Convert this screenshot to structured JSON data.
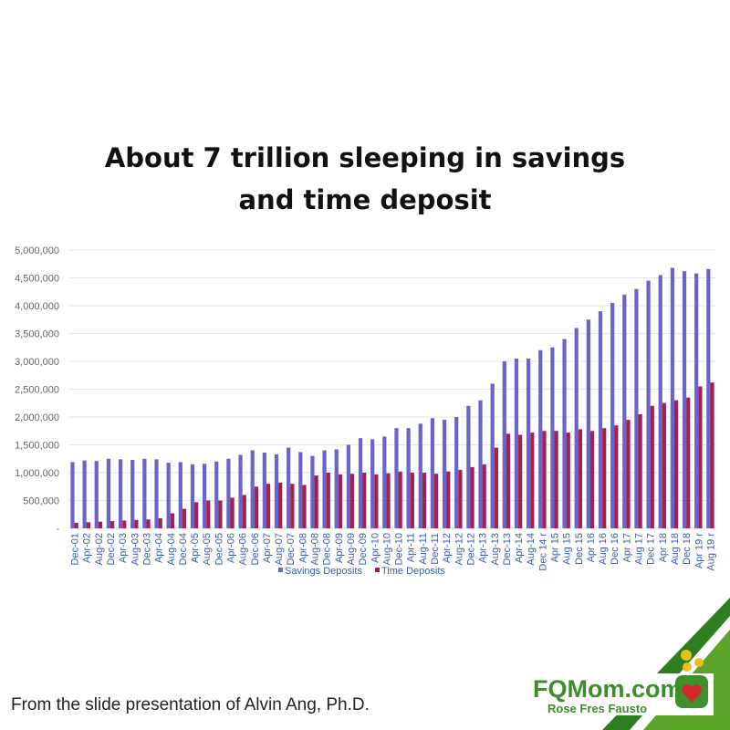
{
  "chart_data": {
    "type": "bar",
    "title": "About 7 trillion sleeping in savings and time deposit",
    "categories": [
      "Dec-01",
      "Apr-02",
      "Aug-02",
      "Dec-02",
      "Apr-03",
      "Aug-03",
      "Dec-03",
      "Apr-04",
      "Aug-04",
      "Dec-04",
      "Apr-05",
      "Aug-05",
      "Dec-05",
      "Apr-06",
      "Aug-06",
      "Dec-06",
      "Apr-07",
      "Aug-07",
      "Dec-07",
      "Apr-08",
      "Aug-08",
      "Dec-08",
      "Apr-09",
      "Aug-09",
      "Dec-09",
      "Apr-10",
      "Aug-10",
      "Dec-10",
      "Apr-11",
      "Aug-11",
      "Dec-11",
      "Apr-12",
      "Aug-12",
      "Dec-12",
      "Apr-13",
      "Aug-13",
      "Dec-13",
      "Apr-14",
      "Aug-14",
      "Dec 14 r",
      "Apr 15",
      "Aug 15",
      "Dec 15",
      "Apr 16",
      "Aug 16",
      "Dec 16",
      "Apr 17",
      "Aug 17",
      "Dec 17",
      "Apr 18",
      "Aug 18",
      "Dec 18",
      "Apr 19 r",
      "Aug 19 r"
    ],
    "series": [
      {
        "name": "Savings Deposits",
        "color": "#6b63c9",
        "values": [
          1190000,
          1220000,
          1210000,
          1250000,
          1240000,
          1230000,
          1250000,
          1240000,
          1180000,
          1190000,
          1150000,
          1160000,
          1200000,
          1250000,
          1320000,
          1400000,
          1360000,
          1330000,
          1450000,
          1370000,
          1300000,
          1400000,
          1420000,
          1500000,
          1620000,
          1600000,
          1650000,
          1800000,
          1800000,
          1880000,
          1980000,
          1950000,
          2000000,
          2200000,
          2300000,
          2600000,
          3000000,
          3050000,
          3050000,
          3200000,
          3250000,
          3400000,
          3600000,
          3750000,
          3900000,
          4050000,
          4200000,
          4300000,
          4450000,
          4550000,
          4680000,
          4620000,
          4580000,
          4660000
        ]
      },
      {
        "name": "Time Deposits",
        "color": "#a3224c",
        "values": [
          100000,
          110000,
          120000,
          130000,
          140000,
          150000,
          160000,
          180000,
          270000,
          350000,
          470000,
          500000,
          500000,
          550000,
          600000,
          750000,
          800000,
          820000,
          800000,
          780000,
          950000,
          1000000,
          970000,
          980000,
          1000000,
          970000,
          990000,
          1020000,
          1000000,
          1000000,
          980000,
          1020000,
          1050000,
          1100000,
          1150000,
          1450000,
          1700000,
          1680000,
          1720000,
          1750000,
          1750000,
          1720000,
          1780000,
          1750000,
          1800000,
          1850000,
          1950000,
          2050000,
          2200000,
          2250000,
          2300000,
          2350000,
          2550000,
          2620000
        ]
      }
    ],
    "ylim": [
      0,
      5000000
    ],
    "yticks": [
      {
        "value": 0,
        "label": "-"
      },
      {
        "value": 500000,
        "label": "500,000"
      },
      {
        "value": 1000000,
        "label": "1,000,000"
      },
      {
        "value": 1500000,
        "label": "1,500,000"
      },
      {
        "value": 2000000,
        "label": "2,000,000"
      },
      {
        "value": 2500000,
        "label": "2,500,000"
      },
      {
        "value": 3000000,
        "label": "3,000,000"
      },
      {
        "value": 3500000,
        "label": "3,500,000"
      },
      {
        "value": 4000000,
        "label": "4,000,000"
      },
      {
        "value": 4500000,
        "label": "4,500,000"
      },
      {
        "value": 5000000,
        "label": "5,000,000"
      }
    ],
    "grid": true
  },
  "footer": "From the slide presentation of Alvin Ang, Ph.D.",
  "logo": {
    "name": "FQMom.com",
    "tagline": "Rose Fres Fausto"
  }
}
